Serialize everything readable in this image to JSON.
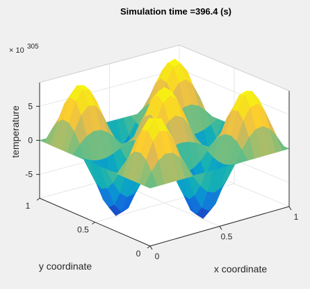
{
  "chart_data": {
    "type": "surface",
    "title": "Simulation time =396.4 (s)",
    "xlabel": "x coordinate",
    "ylabel": "y coordinate",
    "zlabel": "temperature",
    "z_exponent_label": "× 10",
    "z_exponent": "305",
    "xlim": [
      0,
      1
    ],
    "ylim": [
      0,
      1
    ],
    "zlim": [
      -8.5,
      8.5
    ],
    "x_ticks": [
      0,
      0.5,
      1
    ],
    "x_tick_labels": [
      "0",
      "0.5",
      "1"
    ],
    "y_ticks": [
      0,
      0.5,
      1
    ],
    "y_tick_labels": [
      "0",
      "0.5",
      "1"
    ],
    "z_ticks": [
      -5,
      0,
      5
    ],
    "z_tick_labels": [
      "-5",
      "0",
      "5"
    ],
    "surface": {
      "function": "z = 8.5 * sin(3*pi*x) * sin(3*pi*y)",
      "grid_points": 21
    },
    "grid": true,
    "colormap": "parula",
    "background_color": "#f0f0f0",
    "axes_color": "#ffffff",
    "grid_color": "#e6e6e6"
  }
}
